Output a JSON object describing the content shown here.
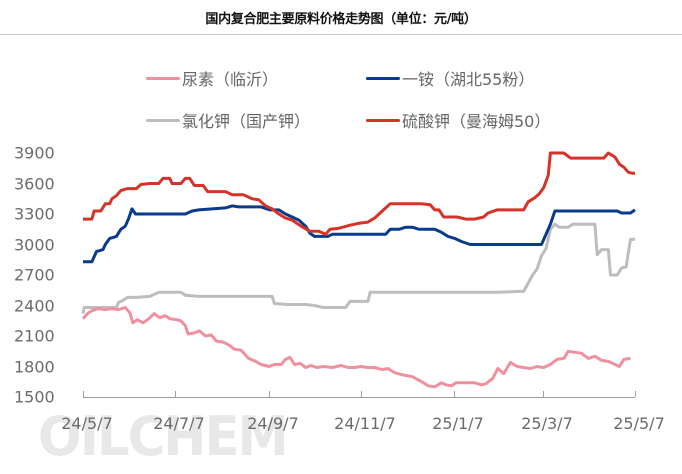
{
  "header": {
    "title": "国内复合肥主要原料价格走势图（单位：元/吨）"
  },
  "legend": [
    {
      "label": "尿素（临沂）",
      "color": "#f0909e"
    },
    {
      "label": "一铵（湖北55粉）",
      "color": "#0a3a8c"
    },
    {
      "label": "氯化钾（国产钾）",
      "color": "#bdbdbd"
    },
    {
      "label": "硫酸钾（曼海姆50）",
      "color": "#d63228"
    }
  ],
  "watermark": "OILCHEM",
  "chart_data": {
    "type": "line",
    "title": "国内复合肥主要原料价格走势图（单位：元/吨）",
    "xlabel": "",
    "ylabel": "元/吨",
    "ylim": [
      1500,
      3900
    ],
    "yticks": [
      3900,
      3600,
      3300,
      3000,
      2700,
      2400,
      2100,
      1800,
      1500
    ],
    "xticks": [
      "24/5/7",
      "24/7/7",
      "24/9/7",
      "24/11/7",
      "25/1/7",
      "25/3/7",
      "25/5/7"
    ],
    "grid": false,
    "legend_position": "top",
    "x_fraction_note": "x values are fractions of the 24/5/7 to 25/5/7 span (0 = 24/5/7, 1 = 25/5/7)",
    "series": [
      {
        "name": "尿素（临沂）",
        "color": "#f0909e",
        "points": [
          [
            0.0,
            2270
          ],
          [
            0.01,
            2320
          ],
          [
            0.02,
            2350
          ],
          [
            0.035,
            2370
          ],
          [
            0.05,
            2360
          ],
          [
            0.065,
            2370
          ],
          [
            0.08,
            2360
          ],
          [
            0.095,
            2380
          ],
          [
            0.105,
            2330
          ],
          [
            0.112,
            2230
          ],
          [
            0.122,
            2260
          ],
          [
            0.135,
            2230
          ],
          [
            0.148,
            2270
          ],
          [
            0.16,
            2320
          ],
          [
            0.172,
            2280
          ],
          [
            0.185,
            2300
          ],
          [
            0.195,
            2270
          ],
          [
            0.21,
            2260
          ],
          [
            0.22,
            2250
          ],
          [
            0.23,
            2200
          ],
          [
            0.236,
            2120
          ],
          [
            0.25,
            2130
          ],
          [
            0.262,
            2150
          ],
          [
            0.275,
            2100
          ],
          [
            0.288,
            2110
          ],
          [
            0.3,
            2050
          ],
          [
            0.315,
            2040
          ],
          [
            0.328,
            2010
          ],
          [
            0.34,
            1970
          ],
          [
            0.355,
            1960
          ],
          [
            0.372,
            1880
          ],
          [
            0.388,
            1850
          ],
          [
            0.4,
            1820
          ],
          [
            0.418,
            1800
          ],
          [
            0.43,
            1820
          ],
          [
            0.445,
            1820
          ],
          [
            0.455,
            1870
          ],
          [
            0.465,
            1890
          ],
          [
            0.475,
            1820
          ],
          [
            0.488,
            1830
          ],
          [
            0.5,
            1790
          ],
          [
            0.512,
            1810
          ],
          [
            0.525,
            1790
          ],
          [
            0.54,
            1800
          ],
          [
            0.56,
            1790
          ],
          [
            0.58,
            1810
          ],
          [
            0.595,
            1790
          ],
          [
            0.61,
            1790
          ],
          [
            0.625,
            1800
          ],
          [
            0.64,
            1790
          ],
          [
            0.655,
            1790
          ],
          [
            0.672,
            1770
          ],
          [
            0.685,
            1780
          ],
          [
            0.7,
            1740
          ],
          [
            0.715,
            1720
          ],
          [
            0.728,
            1710
          ],
          [
            0.74,
            1700
          ],
          [
            0.752,
            1670
          ],
          [
            0.765,
            1640
          ],
          [
            0.775,
            1610
          ],
          [
            0.79,
            1600
          ],
          [
            0.805,
            1640
          ],
          [
            0.815,
            1620
          ],
          [
            0.828,
            1610
          ],
          [
            0.838,
            1640
          ],
          [
            0.855,
            1640
          ],
          [
            0.88,
            1640
          ],
          [
            0.895,
            1620
          ],
          [
            0.905,
            1630
          ],
          [
            0.92,
            1680
          ],
          [
            0.932,
            1780
          ],
          [
            0.945,
            1730
          ],
          [
            0.96,
            1840
          ],
          [
            0.975,
            1800
          ],
          [
            0.99,
            1790
          ],
          [
            1.005,
            1780
          ],
          [
            1.02,
            1800
          ],
          [
            1.035,
            1790
          ],
          [
            1.05,
            1820
          ],
          [
            1.065,
            1870
          ],
          [
            1.08,
            1880
          ],
          [
            1.09,
            1950
          ],
          [
            1.105,
            1940
          ],
          [
            1.12,
            1930
          ],
          [
            1.135,
            1880
          ],
          [
            1.15,
            1900
          ],
          [
            1.165,
            1860
          ],
          [
            1.18,
            1850
          ],
          [
            1.195,
            1820
          ],
          [
            1.205,
            1800
          ],
          [
            1.215,
            1870
          ],
          [
            1.23,
            1880
          ]
        ]
      },
      {
        "name": "一铵（湖北55粉）",
        "color": "#0a3a8c",
        "points": [
          [
            0.0,
            2830
          ],
          [
            0.02,
            2830
          ],
          [
            0.03,
            2930
          ],
          [
            0.045,
            2950
          ],
          [
            0.05,
            3000
          ],
          [
            0.06,
            3060
          ],
          [
            0.075,
            3080
          ],
          [
            0.085,
            3150
          ],
          [
            0.095,
            3180
          ],
          [
            0.102,
            3250
          ],
          [
            0.11,
            3350
          ],
          [
            0.118,
            3300
          ],
          [
            0.14,
            3300
          ],
          [
            0.17,
            3300
          ],
          [
            0.2,
            3300
          ],
          [
            0.23,
            3300
          ],
          [
            0.245,
            3330
          ],
          [
            0.26,
            3340
          ],
          [
            0.29,
            3350
          ],
          [
            0.32,
            3360
          ],
          [
            0.335,
            3380
          ],
          [
            0.35,
            3370
          ],
          [
            0.38,
            3370
          ],
          [
            0.4,
            3370
          ],
          [
            0.42,
            3340
          ],
          [
            0.44,
            3340
          ],
          [
            0.455,
            3300
          ],
          [
            0.47,
            3270
          ],
          [
            0.485,
            3240
          ],
          [
            0.5,
            3180
          ],
          [
            0.51,
            3110
          ],
          [
            0.52,
            3080
          ],
          [
            0.535,
            3080
          ],
          [
            0.55,
            3080
          ],
          [
            0.56,
            3100
          ],
          [
            0.58,
            3100
          ],
          [
            0.6,
            3100
          ],
          [
            0.62,
            3100
          ],
          [
            0.64,
            3100
          ],
          [
            0.66,
            3100
          ],
          [
            0.68,
            3100
          ],
          [
            0.69,
            3150
          ],
          [
            0.71,
            3150
          ],
          [
            0.725,
            3170
          ],
          [
            0.74,
            3170
          ],
          [
            0.755,
            3150
          ],
          [
            0.77,
            3150
          ],
          [
            0.79,
            3150
          ],
          [
            0.805,
            3120
          ],
          [
            0.82,
            3080
          ],
          [
            0.835,
            3060
          ],
          [
            0.85,
            3030
          ],
          [
            0.87,
            3000
          ],
          [
            0.9,
            3000
          ],
          [
            0.93,
            3000
          ],
          [
            0.96,
            3000
          ],
          [
            0.99,
            3000
          ],
          [
            1.01,
            3000
          ],
          [
            1.03,
            3000
          ],
          [
            1.04,
            3100
          ],
          [
            1.05,
            3200
          ],
          [
            1.06,
            3330
          ],
          [
            1.08,
            3330
          ],
          [
            1.12,
            3330
          ],
          [
            1.16,
            3330
          ],
          [
            1.2,
            3330
          ],
          [
            1.21,
            3310
          ],
          [
            1.23,
            3310
          ],
          [
            1.24,
            3340
          ]
        ]
      },
      {
        "name": "氯化钾（国产钾）",
        "color": "#bdbdbd",
        "points": [
          [
            0.0,
            2320
          ],
          [
            0.003,
            2380
          ],
          [
            0.04,
            2380
          ],
          [
            0.075,
            2380
          ],
          [
            0.08,
            2430
          ],
          [
            0.09,
            2450
          ],
          [
            0.1,
            2480
          ],
          [
            0.12,
            2480
          ],
          [
            0.15,
            2490
          ],
          [
            0.17,
            2530
          ],
          [
            0.2,
            2530
          ],
          [
            0.22,
            2530
          ],
          [
            0.23,
            2500
          ],
          [
            0.26,
            2490
          ],
          [
            0.3,
            2490
          ],
          [
            0.35,
            2490
          ],
          [
            0.4,
            2490
          ],
          [
            0.425,
            2490
          ],
          [
            0.43,
            2420
          ],
          [
            0.46,
            2410
          ],
          [
            0.48,
            2410
          ],
          [
            0.5,
            2410
          ],
          [
            0.52,
            2400
          ],
          [
            0.54,
            2380
          ],
          [
            0.57,
            2380
          ],
          [
            0.59,
            2380
          ],
          [
            0.6,
            2440
          ],
          [
            0.62,
            2440
          ],
          [
            0.64,
            2440
          ],
          [
            0.645,
            2530
          ],
          [
            0.7,
            2530
          ],
          [
            0.75,
            2530
          ],
          [
            0.8,
            2530
          ],
          [
            0.85,
            2530
          ],
          [
            0.9,
            2530
          ],
          [
            0.93,
            2530
          ],
          [
            0.99,
            2540
          ],
          [
            1.0,
            2620
          ],
          [
            1.01,
            2700
          ],
          [
            1.02,
            2760
          ],
          [
            1.03,
            2890
          ],
          [
            1.04,
            2960
          ],
          [
            1.05,
            3150
          ],
          [
            1.06,
            3200
          ],
          [
            1.07,
            3170
          ],
          [
            1.09,
            3170
          ],
          [
            1.1,
            3200
          ],
          [
            1.13,
            3200
          ],
          [
            1.15,
            3200
          ],
          [
            1.155,
            2900
          ],
          [
            1.165,
            2950
          ],
          [
            1.18,
            2950
          ],
          [
            1.185,
            2700
          ],
          [
            1.2,
            2700
          ],
          [
            1.21,
            2770
          ],
          [
            1.22,
            2780
          ],
          [
            1.23,
            3050
          ],
          [
            1.24,
            3050
          ]
        ]
      },
      {
        "name": "硫酸钾（曼海姆50）",
        "color": "#d63228",
        "points": [
          [
            0.0,
            3250
          ],
          [
            0.02,
            3250
          ],
          [
            0.025,
            3330
          ],
          [
            0.04,
            3330
          ],
          [
            0.05,
            3400
          ],
          [
            0.06,
            3400
          ],
          [
            0.065,
            3450
          ],
          [
            0.075,
            3480
          ],
          [
            0.085,
            3530
          ],
          [
            0.1,
            3550
          ],
          [
            0.12,
            3550
          ],
          [
            0.13,
            3590
          ],
          [
            0.15,
            3600
          ],
          [
            0.17,
            3600
          ],
          [
            0.18,
            3650
          ],
          [
            0.195,
            3650
          ],
          [
            0.2,
            3600
          ],
          [
            0.22,
            3600
          ],
          [
            0.23,
            3650
          ],
          [
            0.24,
            3650
          ],
          [
            0.25,
            3580
          ],
          [
            0.27,
            3580
          ],
          [
            0.28,
            3520
          ],
          [
            0.3,
            3520
          ],
          [
            0.32,
            3520
          ],
          [
            0.335,
            3490
          ],
          [
            0.36,
            3490
          ],
          [
            0.38,
            3450
          ],
          [
            0.395,
            3440
          ],
          [
            0.41,
            3380
          ],
          [
            0.425,
            3350
          ],
          [
            0.44,
            3300
          ],
          [
            0.455,
            3260
          ],
          [
            0.47,
            3240
          ],
          [
            0.49,
            3180
          ],
          [
            0.51,
            3130
          ],
          [
            0.53,
            3130
          ],
          [
            0.545,
            3100
          ],
          [
            0.555,
            3150
          ],
          [
            0.575,
            3160
          ],
          [
            0.6,
            3190
          ],
          [
            0.62,
            3210
          ],
          [
            0.64,
            3220
          ],
          [
            0.655,
            3260
          ],
          [
            0.665,
            3300
          ],
          [
            0.69,
            3400
          ],
          [
            0.72,
            3400
          ],
          [
            0.76,
            3400
          ],
          [
            0.78,
            3390
          ],
          [
            0.79,
            3340
          ],
          [
            0.8,
            3340
          ],
          [
            0.81,
            3270
          ],
          [
            0.84,
            3270
          ],
          [
            0.86,
            3250
          ],
          [
            0.88,
            3250
          ],
          [
            0.9,
            3270
          ],
          [
            0.91,
            3310
          ],
          [
            0.93,
            3340
          ],
          [
            0.96,
            3340
          ],
          [
            0.99,
            3340
          ],
          [
            1.0,
            3420
          ],
          [
            1.015,
            3460
          ],
          [
            1.025,
            3500
          ],
          [
            1.035,
            3560
          ],
          [
            1.045,
            3680
          ],
          [
            1.05,
            3900
          ],
          [
            1.08,
            3900
          ],
          [
            1.095,
            3850
          ],
          [
            1.12,
            3850
          ],
          [
            1.15,
            3850
          ],
          [
            1.17,
            3850
          ],
          [
            1.18,
            3900
          ],
          [
            1.195,
            3860
          ],
          [
            1.205,
            3790
          ],
          [
            1.215,
            3760
          ],
          [
            1.225,
            3710
          ],
          [
            1.235,
            3700
          ],
          [
            1.24,
            3700
          ]
        ]
      }
    ]
  }
}
